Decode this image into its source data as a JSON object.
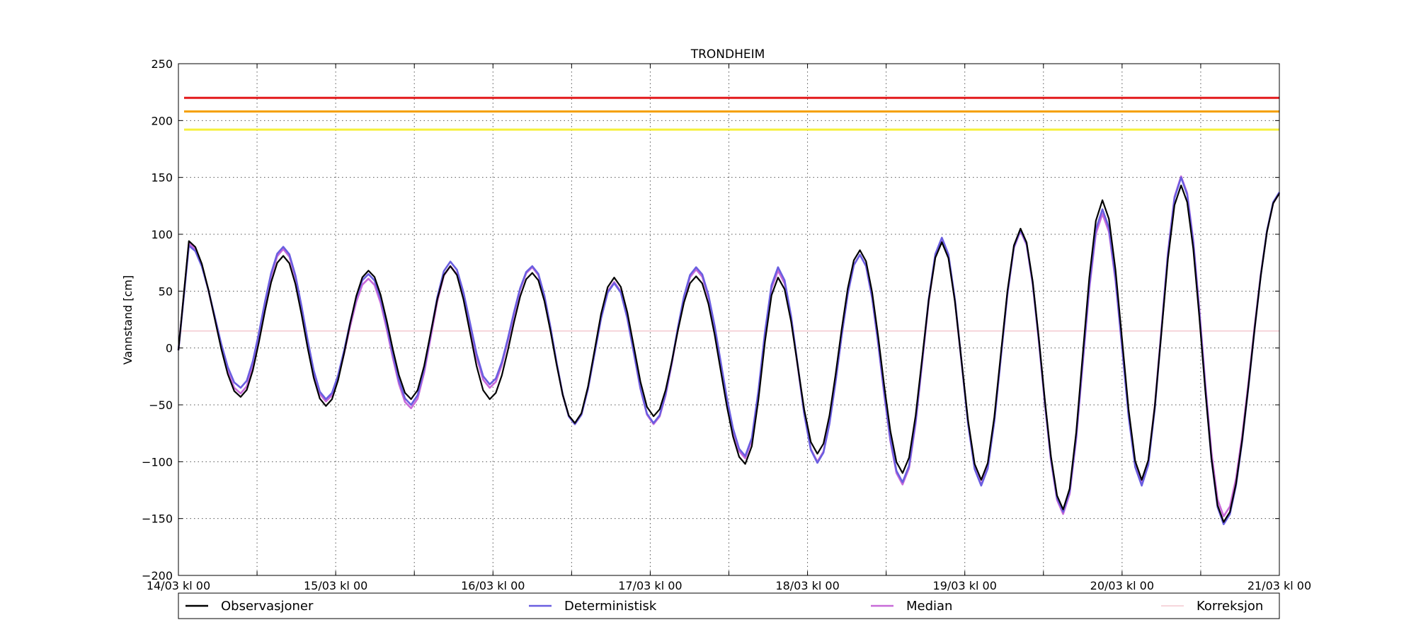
{
  "chart_data": {
    "type": "line",
    "title": "TRONDHEIM",
    "ylabel": "Vannstand [cm]",
    "xlabel": "",
    "ylim": [
      -200,
      250
    ],
    "yticks": [
      -200,
      -150,
      -100,
      -50,
      0,
      50,
      100,
      150,
      200,
      250
    ],
    "xrange_hours": [
      0,
      168
    ],
    "xtick_labels": [
      "14/03 kl 00",
      "15/03 kl 00",
      "16/03 kl 00",
      "17/03 kl 00",
      "18/03 kl 00",
      "19/03 kl 00",
      "20/03 kl 00",
      "21/03 kl 00"
    ],
    "grid": true,
    "legend_position": "bottom",
    "thresholds": [
      {
        "value": 220,
        "color": "#e31a1c"
      },
      {
        "value": 208,
        "color": "#f5a000"
      },
      {
        "value": 192,
        "color": "#f5f03c"
      }
    ],
    "tide_model": {
      "comment_free_params": true,
      "period_hours": 12.42,
      "obs_extrema": [
        [
          1.6,
          94
        ],
        [
          9.5,
          -43
        ],
        [
          16,
          81
        ],
        [
          22.5,
          -51
        ],
        [
          29,
          68
        ],
        [
          35.5,
          -45
        ],
        [
          41.5,
          72
        ],
        [
          47.5,
          -45
        ],
        [
          54,
          66
        ],
        [
          60.5,
          -66
        ],
        [
          66.5,
          62
        ],
        [
          72.5,
          -60
        ],
        [
          79,
          63
        ],
        [
          86.5,
          -102
        ],
        [
          91.5,
          62
        ],
        [
          97.5,
          -93
        ],
        [
          104,
          86
        ],
        [
          110.5,
          -110
        ],
        [
          116.5,
          93
        ],
        [
          122.5,
          -116
        ],
        [
          128.5,
          105
        ],
        [
          135,
          -142
        ],
        [
          141,
          130
        ],
        [
          147,
          -116
        ],
        [
          153,
          143
        ],
        [
          159.5,
          -153
        ],
        [
          168,
          136
        ]
      ],
      "det_extrema": [
        [
          1.6,
          90
        ],
        [
          9.5,
          -35
        ],
        [
          16,
          89
        ],
        [
          22.5,
          -45
        ],
        [
          29,
          65
        ],
        [
          35.5,
          -50
        ],
        [
          41.5,
          76
        ],
        [
          47.5,
          -32
        ],
        [
          54,
          72
        ],
        [
          60.5,
          -67
        ],
        [
          66.5,
          57
        ],
        [
          72.5,
          -66
        ],
        [
          79,
          71
        ],
        [
          86.5,
          -95
        ],
        [
          91.5,
          71
        ],
        [
          97.5,
          -101
        ],
        [
          104,
          82
        ],
        [
          110.5,
          -118
        ],
        [
          116.5,
          97
        ],
        [
          122.5,
          -121
        ],
        [
          128.5,
          104
        ],
        [
          135,
          -144
        ],
        [
          141,
          122
        ],
        [
          147,
          -121
        ],
        [
          153,
          150
        ],
        [
          159.5,
          -155
        ],
        [
          168,
          137
        ]
      ],
      "med_extrema": [
        [
          1.6,
          92
        ],
        [
          9.5,
          -40
        ],
        [
          16,
          87
        ],
        [
          22.5,
          -47
        ],
        [
          29,
          61
        ],
        [
          35.5,
          -53
        ],
        [
          41.5,
          72
        ],
        [
          47.5,
          -35
        ],
        [
          54,
          71
        ],
        [
          60.5,
          -67
        ],
        [
          66.5,
          58
        ],
        [
          72.5,
          -67
        ],
        [
          79,
          69
        ],
        [
          86.5,
          -97
        ],
        [
          91.5,
          68
        ],
        [
          97.5,
          -100
        ],
        [
          104,
          82
        ],
        [
          110.5,
          -120
        ],
        [
          116.5,
          95
        ],
        [
          122.5,
          -120
        ],
        [
          128.5,
          103
        ],
        [
          135,
          -146
        ],
        [
          141,
          118
        ],
        [
          147,
          -118
        ],
        [
          153,
          151
        ],
        [
          159.5,
          -148
        ],
        [
          168,
          136
        ]
      ],
      "correction_level": 15
    },
    "series": [
      {
        "name": "Observasjoner",
        "color": "#000000",
        "key": "obs_extrema"
      },
      {
        "name": "Deterministisk",
        "color": "#6a5ee0",
        "key": "det_extrema"
      },
      {
        "name": "Median",
        "color": "#c86ad8",
        "key": "med_extrema"
      },
      {
        "name": "Korreksjon",
        "color": "#f3c9cf",
        "key": "correction_level"
      }
    ]
  }
}
